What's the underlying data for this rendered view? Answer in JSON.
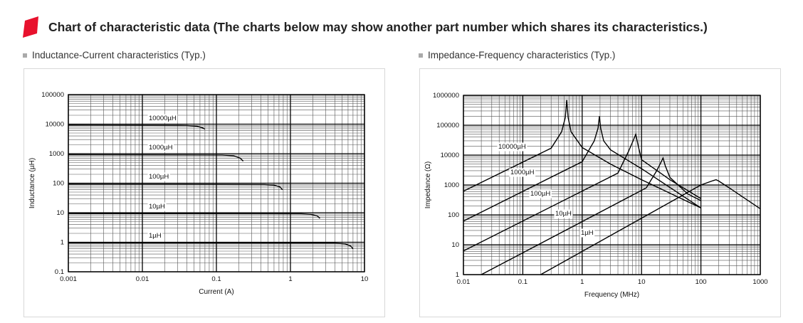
{
  "page": {
    "title": "Chart of characteristic data (The charts below may show another part number which shares its characteristics.)",
    "accent_color": "#e8112d",
    "icon": "red-flag-icon"
  },
  "chart_data": [
    {
      "type": "line",
      "subtitle": "Inductance-Current characteristics (Typ.)",
      "xlabel": "Current (A)",
      "ylabel": "Inductance (µH)",
      "xscale": "log",
      "yscale": "log",
      "xlim": [
        0.001,
        10
      ],
      "ylim": [
        0.1,
        100000
      ],
      "xticks": [
        "0.001",
        "0.01",
        "0.1",
        "1",
        "10"
      ],
      "yticks": [
        "0.1",
        "1",
        "10",
        "100",
        "1000",
        "10000",
        "100000"
      ],
      "grid": true,
      "series": [
        {
          "name": "10000µH",
          "x": [
            0.001,
            0.04,
            0.055,
            0.065,
            0.07
          ],
          "y": [
            9200,
            9000,
            8500,
            7500,
            6800
          ]
        },
        {
          "name": "1000µH",
          "x": [
            0.001,
            0.12,
            0.17,
            0.21,
            0.23
          ],
          "y": [
            920,
            900,
            850,
            700,
            560
          ]
        },
        {
          "name": "100µH",
          "x": [
            0.001,
            0.45,
            0.6,
            0.72,
            0.78
          ],
          "y": [
            92,
            90,
            86,
            75,
            60
          ]
        },
        {
          "name": "10µH",
          "x": [
            0.001,
            1.4,
            1.9,
            2.3,
            2.5
          ],
          "y": [
            9.4,
            9.2,
            8.8,
            7.8,
            6.5
          ]
        },
        {
          "name": "1µH",
          "x": [
            0.001,
            4.0,
            5.5,
            6.5,
            7.0
          ],
          "y": [
            0.95,
            0.93,
            0.88,
            0.75,
            0.6
          ]
        }
      ]
    },
    {
      "type": "line",
      "subtitle": "Impedance-Frequency characteristics (Typ.)",
      "xlabel": "Frequency (MHz)",
      "ylabel": "Impedance (Ω)",
      "xscale": "log",
      "yscale": "log",
      "xlim": [
        0.01,
        1000
      ],
      "ylim": [
        1,
        1000000
      ],
      "xticks": [
        "0.01",
        "0.1",
        "1",
        "10",
        "100",
        "1000"
      ],
      "yticks": [
        "1",
        "10",
        "100",
        "1000",
        "10000",
        "100000",
        "1000000"
      ],
      "grid": true,
      "series": [
        {
          "name": "10000µH",
          "x": [
            0.01,
            0.3,
            0.45,
            0.52,
            0.55,
            0.58,
            0.65,
            1,
            3,
            10,
            100
          ],
          "y": [
            620,
            17000,
            60000,
            180000,
            700000,
            180000,
            60000,
            18000,
            5000,
            1500,
            170
          ]
        },
        {
          "name": "1000µH",
          "x": [
            0.01,
            1,
            1.6,
            1.85,
            1.95,
            2.05,
            2.3,
            3,
            10,
            100
          ],
          "y": [
            62,
            6000,
            30000,
            80000,
            200000,
            80000,
            30000,
            15000,
            3500,
            170
          ]
        },
        {
          "name": "100µH",
          "x": [
            0.01,
            4,
            6,
            7.2,
            8,
            8.8,
            10,
            30,
            100
          ],
          "y": [
            6.2,
            2500,
            13000,
            30000,
            50000,
            20000,
            7000,
            1500,
            350
          ]
        },
        {
          "name": "10µH",
          "x": [
            0.02,
            12,
            18,
            21,
            23,
            25,
            30,
            60,
            100
          ],
          "y": [
            1,
            800,
            3000,
            5500,
            8000,
            4500,
            1800,
            500,
            300
          ]
        },
        {
          "name": "1µH",
          "x": [
            0.2,
            100,
            160,
            180,
            200,
            300,
            1000
          ],
          "y": [
            1,
            1000,
            1400,
            1500,
            1350,
            800,
            160
          ]
        }
      ]
    }
  ]
}
